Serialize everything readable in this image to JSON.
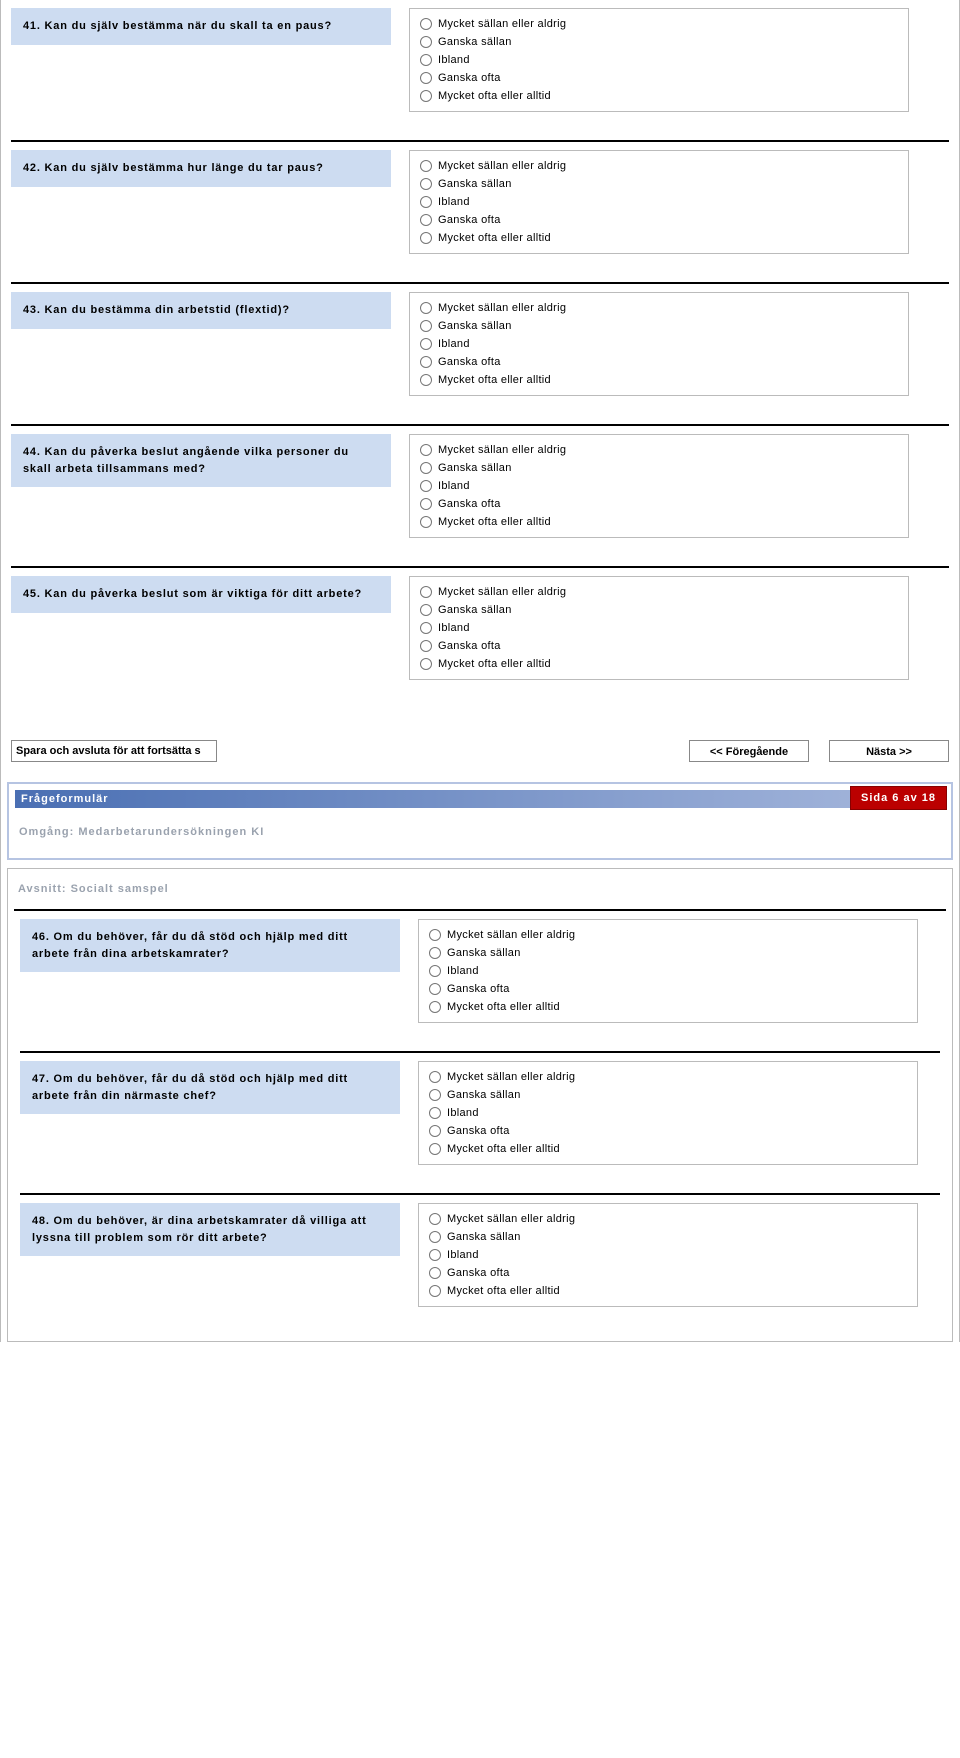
{
  "options": [
    "Mycket sällan eller aldrig",
    "Ganska sällan",
    "Ibland",
    "Ganska ofta",
    "Mycket ofta eller alltid"
  ],
  "questions_top": [
    {
      "num": "41",
      "text": "41. Kan du själv bestämma när du skall ta en paus?"
    },
    {
      "num": "42",
      "text": "42. Kan du själv bestämma hur länge du tar paus?"
    },
    {
      "num": "43",
      "text": "43. Kan du bestämma din arbetstid (flextid)?"
    },
    {
      "num": "44",
      "text": "44. Kan du påverka beslut angående vilka personer du skall arbeta tillsammans med?"
    },
    {
      "num": "45",
      "text": "45. Kan du påverka beslut som är viktiga för ditt arbete?"
    }
  ],
  "nav": {
    "save_value": "Spara och avsluta för att fortsätta s",
    "prev_label": "<< Föregående",
    "next_label": "Nästa >>"
  },
  "page6": {
    "header_title": "Frågeformulär",
    "page_badge": "Sida 6 av 18",
    "round_label": "Omgång: Medarbetarundersökningen KI",
    "section_title": "Avsnitt: Socialt samspel"
  },
  "questions_bottom": [
    {
      "num": "46",
      "text": "46. Om du behöver, får du då stöd och hjälp med ditt arbete från dina arbetskamrater?"
    },
    {
      "num": "47",
      "text": "47. Om du behöver, får du då stöd och hjälp med ditt arbete från din närmaste chef?"
    },
    {
      "num": "48",
      "text": "48. Om du behöver, är dina arbetskamrater då villiga att lyssna till problem som rör ditt arbete?"
    }
  ]
}
